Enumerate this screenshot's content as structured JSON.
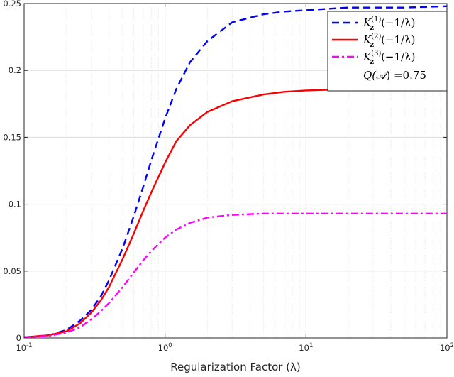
{
  "chart_data": {
    "type": "line",
    "xlabel": "Regularization Factor (λ)",
    "xscale": "log",
    "xlim": [
      0.1,
      100
    ],
    "ylim": [
      0,
      0.25
    ],
    "grid": true,
    "legend_position": "top-right",
    "x_ticks": [
      {
        "value": 0.1,
        "base": "10",
        "exp": "-1"
      },
      {
        "value": 1,
        "base": "10",
        "exp": "0"
      },
      {
        "value": 10,
        "base": "10",
        "exp": "1"
      },
      {
        "value": 100,
        "base": "10",
        "exp": "2"
      }
    ],
    "y_ticks": [
      {
        "value": 0,
        "label": "0"
      },
      {
        "value": 0.05,
        "label": "0.05"
      },
      {
        "value": 0.1,
        "label": "0.1"
      },
      {
        "value": 0.15,
        "label": "0.15"
      },
      {
        "value": 0.2,
        "label": "0.2"
      },
      {
        "value": 0.25,
        "label": "0.25"
      }
    ],
    "x": [
      0.1,
      0.15,
      0.2,
      0.25,
      0.3,
      0.35,
      0.4,
      0.5,
      0.6,
      0.7,
      0.8,
      1.0,
      1.2,
      1.5,
      2.0,
      3.0,
      5.0,
      7.0,
      10,
      20,
      50,
      100
    ],
    "series": [
      {
        "name_main": "K",
        "name_sub": "z",
        "name_sup": "(1)",
        "name_arg": "(−1/λ)",
        "color": "#0000ff",
        "dash": "dashed",
        "values": [
          0.0005,
          0.002,
          0.006,
          0.013,
          0.021,
          0.031,
          0.043,
          0.067,
          0.091,
          0.113,
          0.133,
          0.164,
          0.186,
          0.206,
          0.222,
          0.236,
          0.242,
          0.244,
          0.245,
          0.247,
          0.247,
          0.248
        ]
      },
      {
        "name_main": "K",
        "name_sub": "z",
        "name_sup": "(2)",
        "name_arg": "(−1/λ)",
        "color": "#ff0000",
        "dash": "solid",
        "values": [
          0.0005,
          0.002,
          0.005,
          0.011,
          0.019,
          0.028,
          0.038,
          0.059,
          0.078,
          0.095,
          0.109,
          0.131,
          0.147,
          0.159,
          0.169,
          0.177,
          0.182,
          0.184,
          0.185,
          0.186,
          0.186,
          0.186
        ]
      },
      {
        "name_main": "K",
        "name_sub": "z",
        "name_sup": "(3)",
        "name_arg": "(−1/λ)",
        "color": "#ff00ff",
        "dash": "dashdot",
        "values": [
          0.0005,
          0.0015,
          0.004,
          0.008,
          0.014,
          0.02,
          0.026,
          0.038,
          0.049,
          0.058,
          0.065,
          0.075,
          0.081,
          0.086,
          0.09,
          0.092,
          0.093,
          0.093,
          0.093,
          0.093,
          0.093,
          0.093
        ]
      }
    ],
    "annotation": {
      "text_main": "Q(",
      "text_calA": "𝒜",
      "text_tail": ") =0.75"
    }
  }
}
